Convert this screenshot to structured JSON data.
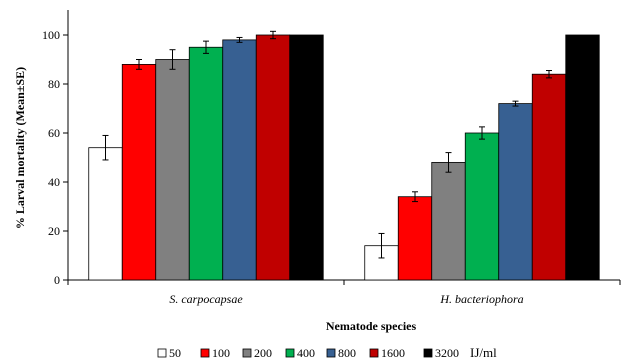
{
  "chart_data": {
    "type": "bar",
    "title": "",
    "xlabel": "Nematode species",
    "ylabel": "% Larval mortality (Mean±SE)",
    "ylim": [
      0,
      100
    ],
    "yticks": [
      0,
      20,
      40,
      60,
      80,
      100
    ],
    "categories": [
      "S. carpocapsae",
      "H. bacteriophora"
    ],
    "legend_unit": "IJ/ml",
    "legend_position": "bottom",
    "grid": false,
    "series": [
      {
        "name": "50",
        "color": "#ffffff",
        "values": [
          54,
          14
        ],
        "errors": [
          5,
          5
        ]
      },
      {
        "name": "100",
        "color": "#ff0000",
        "values": [
          88,
          34
        ],
        "errors": [
          2,
          2
        ]
      },
      {
        "name": "200",
        "color": "#808080",
        "values": [
          90,
          48
        ],
        "errors": [
          4,
          4
        ]
      },
      {
        "name": "400",
        "color": "#00b050",
        "values": [
          95,
          60
        ],
        "errors": [
          2.5,
          2.5
        ]
      },
      {
        "name": "800",
        "color": "#376092",
        "values": [
          98,
          72
        ],
        "errors": [
          1,
          1
        ]
      },
      {
        "name": "1600",
        "color": "#c00000",
        "values": [
          100,
          84
        ],
        "errors": [
          1.5,
          1.5
        ]
      },
      {
        "name": "3200",
        "color": "#000000",
        "values": [
          100,
          100
        ],
        "errors": [
          0,
          0
        ]
      }
    ]
  }
}
